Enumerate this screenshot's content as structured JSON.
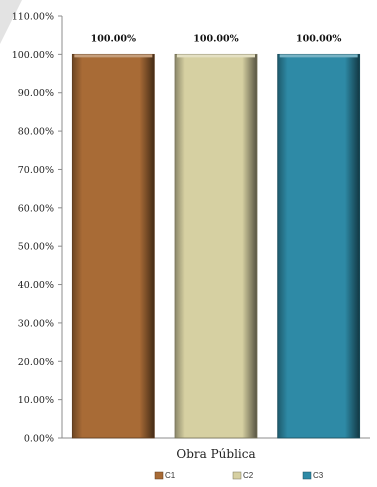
{
  "chart_data": {
    "type": "bar",
    "title": "",
    "xlabel": "",
    "ylabel": "",
    "categories": [
      "Obra Pública"
    ],
    "series": [
      {
        "name": "C1",
        "values": [
          100.0
        ],
        "color": "#a86b36",
        "data_label": "100.00%"
      },
      {
        "name": "C2",
        "values": [
          100.0
        ],
        "color": "#d6d0a2",
        "data_label": "100.00%"
      },
      {
        "name": "C3",
        "values": [
          100.0
        ],
        "color": "#2e8aa6",
        "data_label": "100.00%"
      }
    ],
    "ylim": [
      0,
      110
    ],
    "y_ticks": [
      0,
      10,
      20,
      30,
      40,
      50,
      60,
      70,
      80,
      90,
      100,
      110
    ],
    "y_tick_labels": [
      "0.00%",
      "10.00%",
      "20.00%",
      "30.00%",
      "40.00%",
      "50.00%",
      "60.00%",
      "70.00%",
      "80.00%",
      "90.00%",
      "100.00%",
      "110.00%"
    ],
    "grid": false,
    "legend_position": "bottom"
  }
}
